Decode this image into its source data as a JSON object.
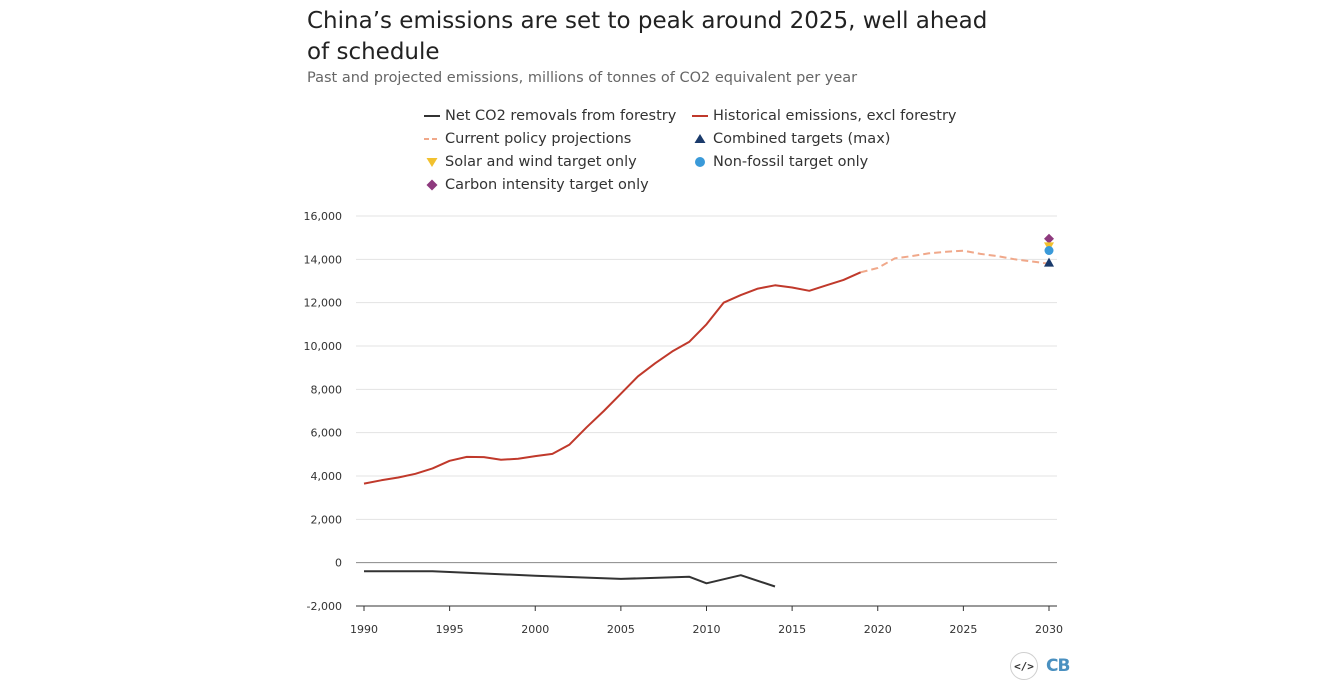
{
  "header": {
    "title": "China’s emissions are set to peak around 2025, well ahead of schedule",
    "subtitle": "Past and projected emissions, millions of tonnes of CO2 equivalent per year"
  },
  "footer": {
    "embed_label": "</>",
    "logo_text": "CB"
  },
  "colors": {
    "net_removals": "#333333",
    "historical": "#c0392b",
    "projection": "#f0a88a",
    "combined": "#1a3a6b",
    "solar_wind": "#f2c12e",
    "non_fossil": "#3a9ad9",
    "carbon_intensity": "#8e3a7e"
  },
  "chart_data": {
    "type": "line",
    "title": "China’s emissions are set to peak around 2025, well ahead of schedule",
    "subtitle": "Past and projected emissions, millions of tonnes of CO2 equivalent per year",
    "xlim": [
      1990,
      2030
    ],
    "ylim": [
      -2000,
      16000
    ],
    "x_ticks": [
      1990,
      1995,
      2000,
      2005,
      2010,
      2015,
      2020,
      2025,
      2030
    ],
    "y_ticks": [
      -2000,
      0,
      2000,
      4000,
      6000,
      8000,
      10000,
      12000,
      14000,
      16000
    ],
    "y_tick_labels": [
      "-2,000",
      "0",
      "2,000",
      "4,000",
      "6,000",
      "8,000",
      "10,000",
      "12,000",
      "14,000",
      "16,000"
    ],
    "grid": "horizontal",
    "legend_position": "top",
    "series": [
      {
        "name": "Net CO2 removals from forestry",
        "style": "line",
        "points": [
          [
            1990,
            -400
          ],
          [
            1994,
            -400
          ],
          [
            1995,
            -430
          ],
          [
            2000,
            -600
          ],
          [
            2005,
            -750
          ],
          [
            2009,
            -650
          ],
          [
            2010,
            -950
          ],
          [
            2012,
            -580
          ],
          [
            2014,
            -1100
          ]
        ]
      },
      {
        "name": "Historical emissions, excl forestry",
        "style": "line",
        "points": [
          [
            1990,
            3650
          ],
          [
            1991,
            3800
          ],
          [
            1992,
            3930
          ],
          [
            1993,
            4100
          ],
          [
            1994,
            4350
          ],
          [
            1995,
            4700
          ],
          [
            1996,
            4880
          ],
          [
            1997,
            4870
          ],
          [
            1998,
            4750
          ],
          [
            1999,
            4800
          ],
          [
            2000,
            4920
          ],
          [
            2001,
            5020
          ],
          [
            2002,
            5450
          ],
          [
            2003,
            6250
          ],
          [
            2004,
            7000
          ],
          [
            2005,
            7800
          ],
          [
            2006,
            8600
          ],
          [
            2007,
            9200
          ],
          [
            2008,
            9750
          ],
          [
            2009,
            10200
          ],
          [
            2010,
            11000
          ],
          [
            2011,
            12000
          ],
          [
            2012,
            12350
          ],
          [
            2013,
            12650
          ],
          [
            2014,
            12800
          ],
          [
            2015,
            12700
          ],
          [
            2016,
            12550
          ],
          [
            2017,
            12800
          ],
          [
            2018,
            13050
          ],
          [
            2019,
            13400
          ]
        ]
      },
      {
        "name": "Current policy projections",
        "style": "dashed",
        "points": [
          [
            2019,
            13400
          ],
          [
            2020,
            13600
          ],
          [
            2021,
            14050
          ],
          [
            2022,
            14150
          ],
          [
            2023,
            14280
          ],
          [
            2024,
            14350
          ],
          [
            2025,
            14400
          ],
          [
            2026,
            14250
          ],
          [
            2027,
            14150
          ],
          [
            2028,
            14000
          ],
          [
            2029,
            13900
          ],
          [
            2030,
            13800
          ]
        ]
      },
      {
        "name": "Combined targets (max)",
        "style": "marker",
        "marker": "triangle-up",
        "points": [
          [
            2030,
            13800
          ]
        ]
      },
      {
        "name": "Solar and wind target only",
        "style": "marker",
        "marker": "triangle-down",
        "points": [
          [
            2030,
            14550
          ]
        ]
      },
      {
        "name": "Non-fossil target only",
        "style": "marker",
        "marker": "circle",
        "points": [
          [
            2030,
            14500
          ]
        ]
      },
      {
        "name": "Carbon intensity target only",
        "style": "marker",
        "marker": "diamond",
        "points": [
          [
            2030,
            14950
          ]
        ]
      }
    ]
  }
}
